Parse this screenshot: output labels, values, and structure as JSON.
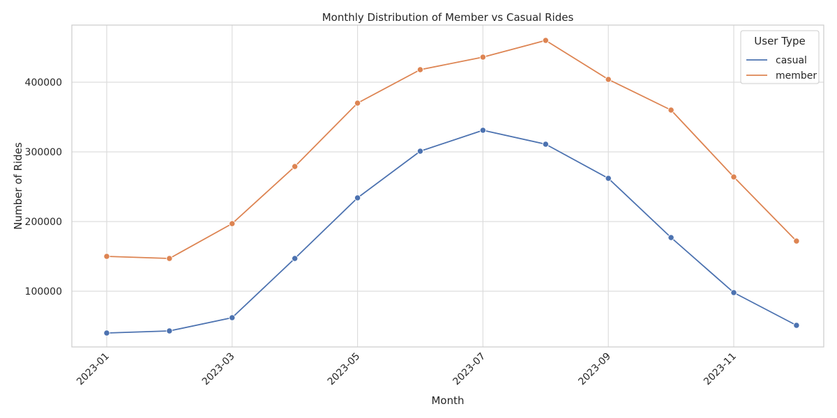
{
  "chart_data": {
    "type": "line",
    "title": "Monthly Distribution of Member vs Casual Rides",
    "xlabel": "Month",
    "ylabel": "Number of Rides",
    "x": [
      "2023-01",
      "2023-02",
      "2023-03",
      "2023-04",
      "2023-05",
      "2023-06",
      "2023-07",
      "2023-08",
      "2023-09",
      "2023-10",
      "2023-11",
      "2023-12"
    ],
    "x_tick_labels": [
      "2023-01",
      "2023-03",
      "2023-05",
      "2023-07",
      "2023-09",
      "2023-11"
    ],
    "y_ticks": [
      100000,
      200000,
      300000,
      400000
    ],
    "ylim": [
      20000,
      482000
    ],
    "grid": true,
    "legend": {
      "title": "User Type",
      "placement": "top-right"
    },
    "series": [
      {
        "name": "casual",
        "color": "#4c72b0",
        "values": [
          40000,
          43000,
          62000,
          147000,
          234000,
          301000,
          331000,
          311000,
          262000,
          177000,
          98000,
          51000
        ]
      },
      {
        "name": "member",
        "color": "#dd8452",
        "values": [
          150000,
          147000,
          197000,
          279000,
          370000,
          418000,
          436000,
          460000,
          404000,
          360000,
          264000,
          172000
        ]
      }
    ]
  }
}
